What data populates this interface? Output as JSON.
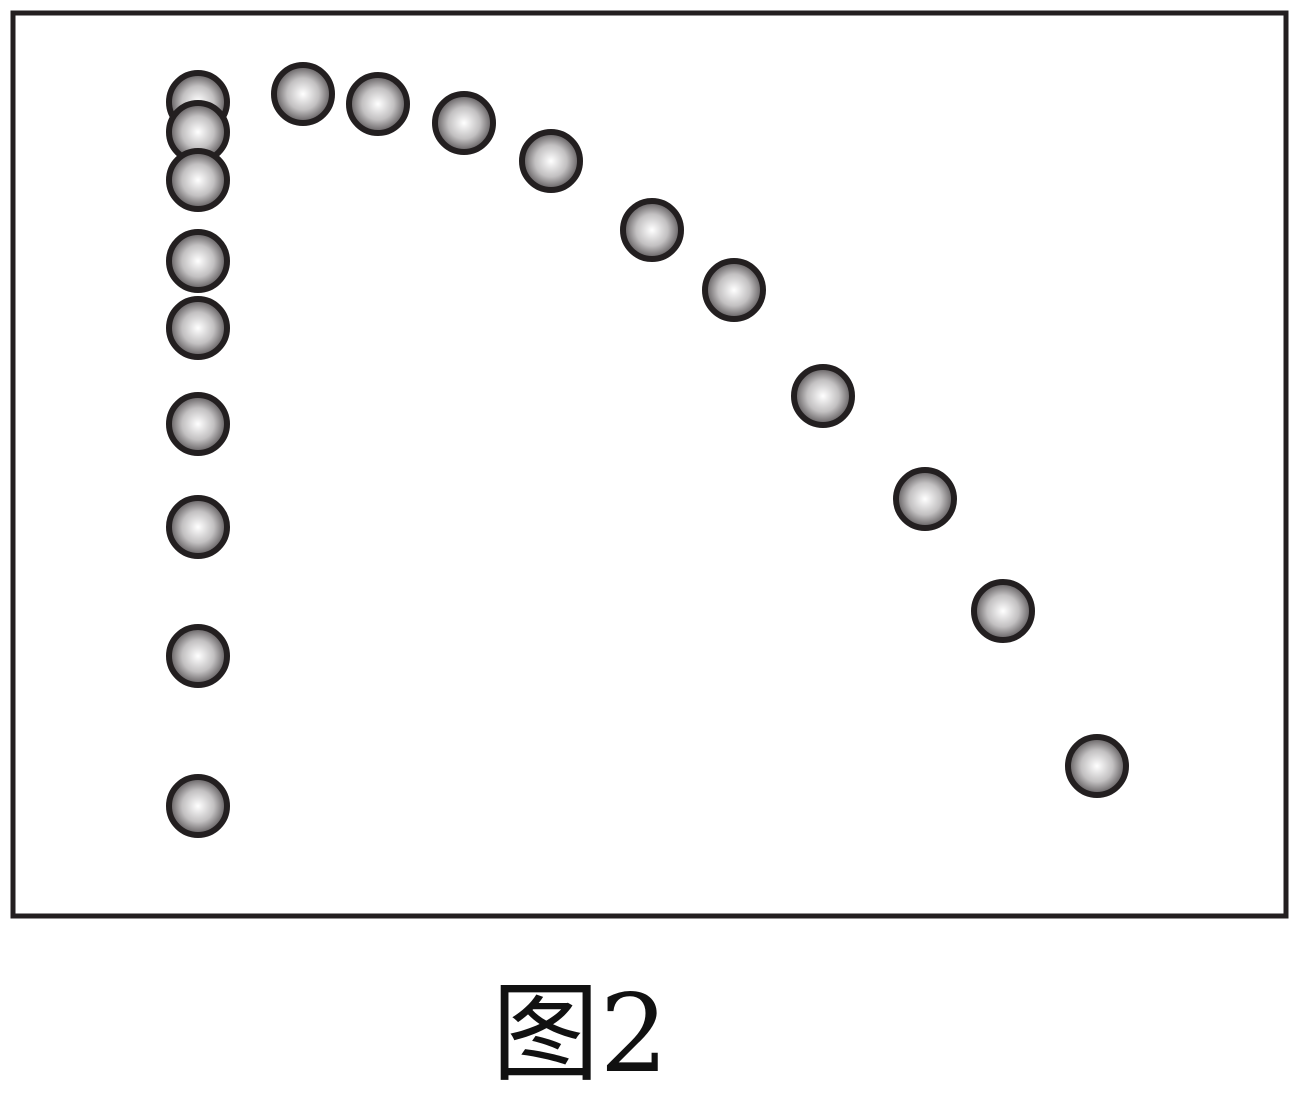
{
  "figure": {
    "caption": "图2",
    "ball_count": 20,
    "colors": {
      "frame": "#231f20",
      "ball_outline": "#231f20",
      "ball_highlight": "#ffffff",
      "ball_shade": "#5a5658",
      "background": "#ffffff"
    }
  }
}
